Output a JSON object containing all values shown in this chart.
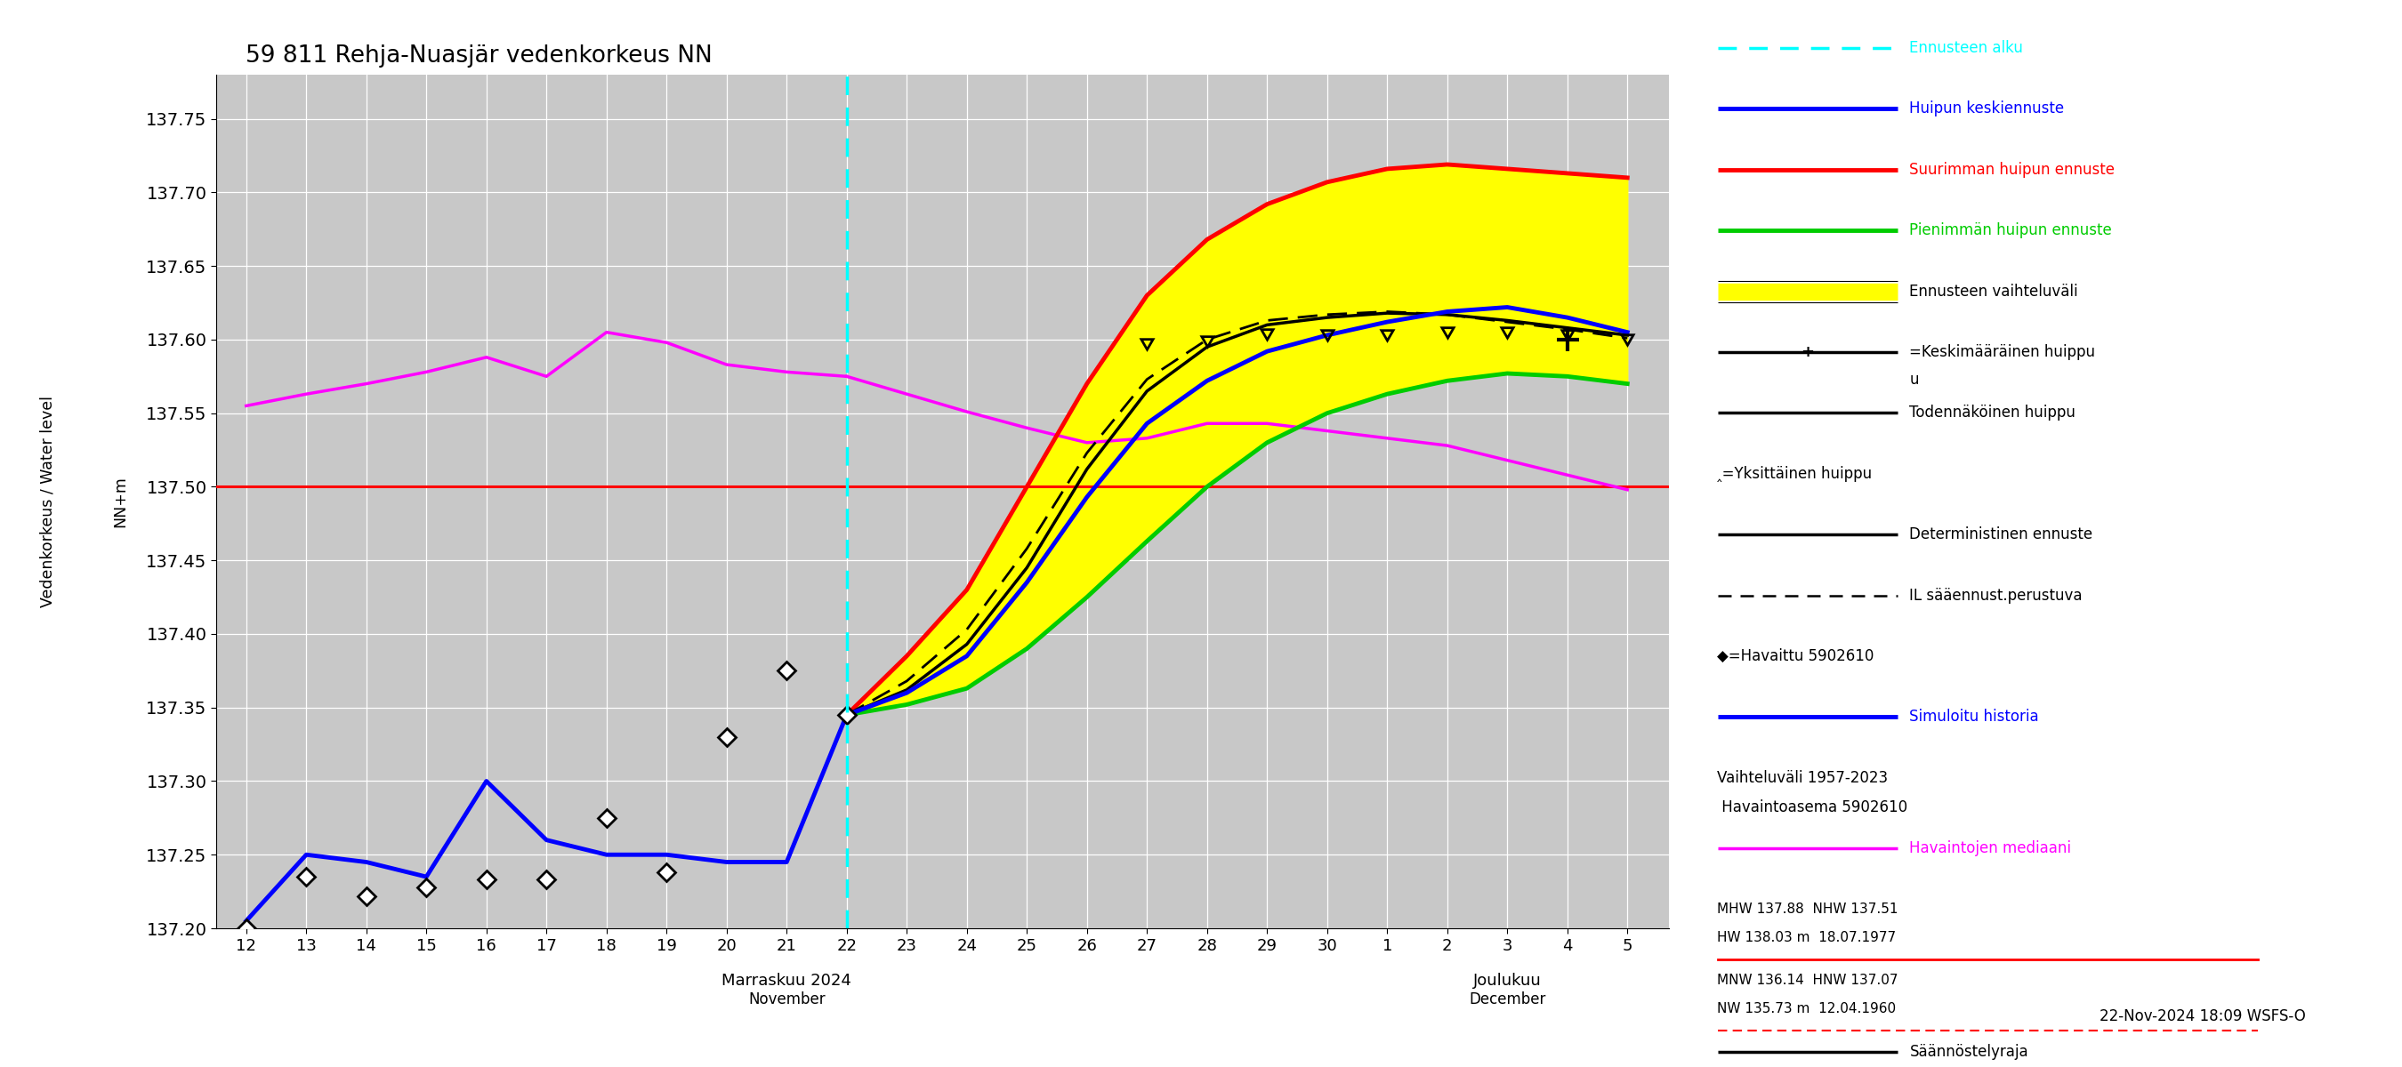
{
  "title": "59 811 Rehja-Nuasjär vedenkorkeus NN",
  "footnote": "22-Nov-2024 18:09 WSFS-O",
  "ylim": [
    137.2,
    137.78
  ],
  "yticks": [
    137.2,
    137.25,
    137.3,
    137.35,
    137.4,
    137.45,
    137.5,
    137.55,
    137.6,
    137.65,
    137.7,
    137.75
  ],
  "saannostelyraja": 137.5,
  "xlim": [
    11.5,
    35.7
  ],
  "nov_xticks": [
    12,
    13,
    14,
    15,
    16,
    17,
    18,
    19,
    20,
    21,
    22,
    23,
    24,
    25,
    26,
    27,
    28,
    29,
    30
  ],
  "dec_xticks": [
    31,
    32,
    33,
    34,
    35
  ],
  "nov_labels": [
    "12",
    "13",
    "14",
    "15",
    "16",
    "17",
    "18",
    "19",
    "20",
    "21",
    "22",
    "23",
    "24",
    "25",
    "26",
    "27",
    "28",
    "29",
    "30"
  ],
  "dec_labels": [
    "1",
    "2",
    "3",
    "4",
    "5"
  ],
  "blue_history_x": [
    12,
    13,
    14,
    15,
    16,
    17,
    18,
    19,
    20,
    21,
    22
  ],
  "blue_history_y": [
    137.205,
    137.25,
    137.245,
    137.235,
    137.3,
    137.26,
    137.25,
    137.25,
    137.245,
    137.245,
    137.345
  ],
  "observed_x": [
    12,
    13,
    14,
    15,
    16,
    17,
    18,
    19,
    20,
    21,
    22
  ],
  "observed_y": [
    137.2,
    137.235,
    137.222,
    137.228,
    137.233,
    137.233,
    137.275,
    137.238,
    137.33,
    137.375,
    137.345
  ],
  "blue_forecast_x": [
    22,
    23,
    24,
    25,
    26,
    27,
    28,
    29,
    30,
    31,
    32,
    33,
    34,
    35
  ],
  "blue_forecast_y": [
    137.345,
    137.36,
    137.385,
    137.435,
    137.493,
    137.543,
    137.572,
    137.592,
    137.603,
    137.612,
    137.619,
    137.622,
    137.615,
    137.605
  ],
  "red_x": [
    22,
    23,
    24,
    25,
    26,
    27,
    28,
    29,
    30,
    31,
    32,
    33,
    34,
    35
  ],
  "red_y": [
    137.345,
    137.385,
    137.43,
    137.5,
    137.57,
    137.63,
    137.668,
    137.692,
    137.707,
    137.716,
    137.719,
    137.716,
    137.713,
    137.71
  ],
  "green_x": [
    22,
    23,
    24,
    25,
    26,
    27,
    28,
    29,
    30,
    31,
    32,
    33,
    34,
    35
  ],
  "green_y": [
    137.345,
    137.352,
    137.363,
    137.39,
    137.425,
    137.463,
    137.5,
    137.53,
    137.55,
    137.563,
    137.572,
    137.577,
    137.575,
    137.57
  ],
  "black_solid_x": [
    22,
    23,
    24,
    25,
    26,
    27,
    28,
    29,
    30,
    31,
    32,
    33,
    34,
    35
  ],
  "black_solid_y": [
    137.345,
    137.362,
    137.393,
    137.445,
    137.512,
    137.565,
    137.595,
    137.61,
    137.615,
    137.618,
    137.617,
    137.613,
    137.608,
    137.603
  ],
  "black_dashed_x": [
    22,
    23,
    24,
    25,
    26,
    27,
    28,
    29,
    30,
    31,
    32,
    33,
    34,
    35
  ],
  "black_dashed_y": [
    137.345,
    137.368,
    137.403,
    137.458,
    137.523,
    137.573,
    137.6,
    137.613,
    137.617,
    137.619,
    137.617,
    137.612,
    137.607,
    137.601
  ],
  "pink_nov_x": [
    12,
    13,
    14,
    15,
    16,
    17,
    18,
    19,
    20,
    21,
    22
  ],
  "pink_nov_y": [
    137.555,
    137.563,
    137.57,
    137.578,
    137.588,
    137.575,
    137.605,
    137.598,
    137.583,
    137.578,
    137.575
  ],
  "pink_fc_x": [
    22,
    23,
    24,
    25,
    26,
    27,
    28,
    29,
    30,
    31,
    32,
    33,
    34,
    35
  ],
  "pink_fc_y": [
    137.575,
    137.563,
    137.551,
    137.54,
    137.53,
    137.533,
    137.543,
    137.543,
    137.538,
    137.533,
    137.528,
    137.518,
    137.508,
    137.498
  ],
  "caret_x": [
    27,
    28,
    29,
    30,
    31,
    32,
    33,
    34,
    35
  ],
  "caret_y": [
    137.598,
    137.6,
    137.605,
    137.604,
    137.604,
    137.606,
    137.606,
    137.604,
    137.601
  ],
  "plus_day": 34,
  "plus_val": 137.6,
  "background_color": "#c8c8c8"
}
